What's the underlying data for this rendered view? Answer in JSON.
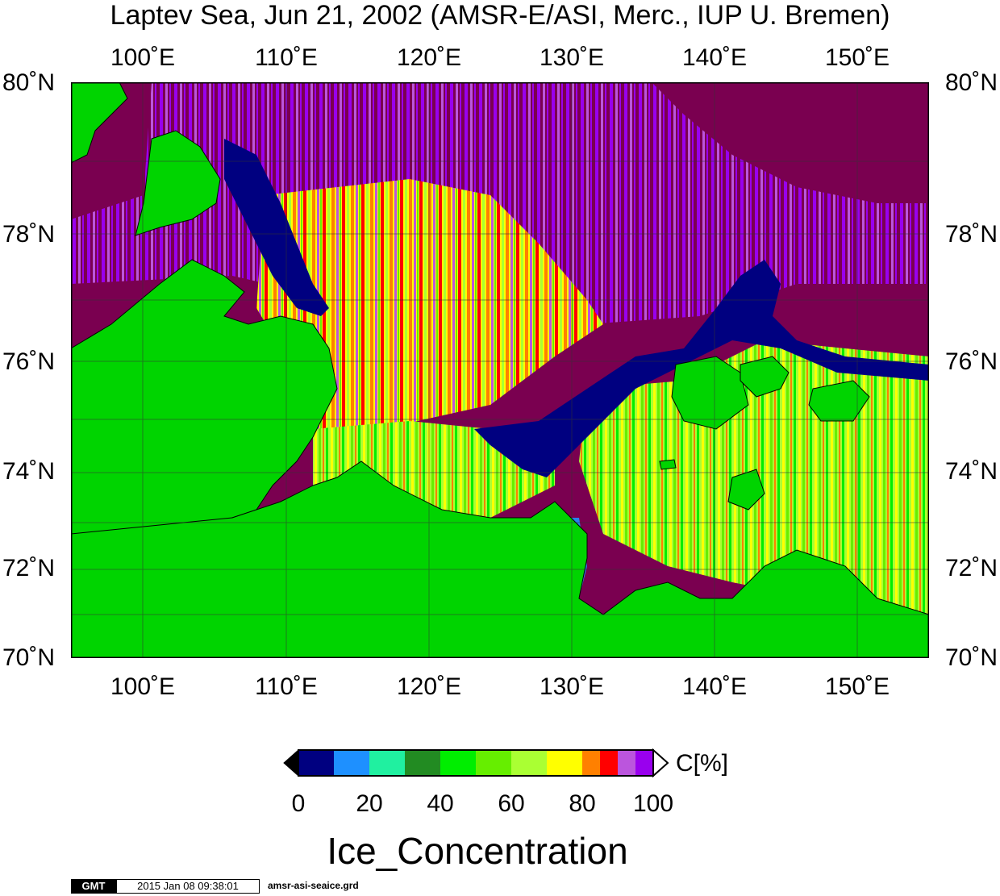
{
  "title": "Laptev Sea, Jun 21, 2002 (AMSR-E/ASI, Merc., IUP U. Bremen)",
  "map": {
    "longitude_ticks": [
      "100˚E",
      "110˚E",
      "120˚E",
      "130˚E",
      "140˚E",
      "150˚E"
    ],
    "latitude_ticks": [
      "80˚N",
      "78˚N",
      "76˚N",
      "74˚N",
      "72˚N",
      "70˚N"
    ],
    "lon_range": [
      95,
      155
    ],
    "lat_range": [
      70,
      80
    ],
    "colors": {
      "land": "#00d400",
      "ice_high": "#7a0050",
      "grid": "#333333"
    }
  },
  "colorbar": {
    "unit": "C[%]",
    "ticks": [
      "0",
      "20",
      "40",
      "60",
      "80",
      "100"
    ],
    "colors": [
      "#000080",
      "#1e90ff",
      "#20f0a0",
      "#228b22",
      "#00ee00",
      "#66ee00",
      "#aaff33",
      "#ffff00",
      "#ff8000",
      "#ff0000",
      "#bb55dd",
      "#9900ee",
      "#7a0050"
    ],
    "title": "Ice_Concentration"
  },
  "footer": {
    "logo": "GMT",
    "timestamp": "2015 Jan 08 09:38:01",
    "filename": "amsr-asi-seaice.grd"
  }
}
